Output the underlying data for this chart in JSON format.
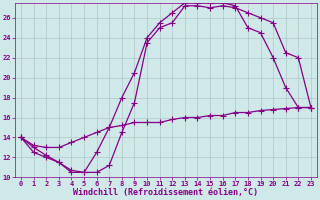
{
  "background_color": "#cfe8e8",
  "grid_color": "#b0c8c8",
  "line_color": "#880088",
  "marker": "+",
  "markersize": 4,
  "linewidth": 0.9,
  "xlabel": "Windchill (Refroidissement éolien,°C)",
  "xlabel_fontsize": 6,
  "xlabel_color": "#880088",
  "tick_color": "#880088",
  "tick_fontsize": 5,
  "xlim": [
    -0.5,
    23.5
  ],
  "ylim": [
    10,
    27.5
  ],
  "xticks": [
    0,
    1,
    2,
    3,
    4,
    5,
    6,
    7,
    8,
    9,
    10,
    11,
    12,
    13,
    14,
    15,
    16,
    17,
    18,
    19,
    20,
    21,
    22,
    23
  ],
  "yticks": [
    10,
    12,
    14,
    16,
    18,
    20,
    22,
    24,
    26
  ],
  "curve1_x": [
    0,
    1,
    2,
    3,
    4,
    5,
    6,
    7,
    8,
    9,
    10,
    11,
    12,
    13,
    14,
    15,
    16,
    17,
    18,
    19,
    20,
    21,
    22,
    23
  ],
  "curve1_y": [
    14,
    13,
    12.2,
    11.5,
    10.7,
    10.5,
    10.5,
    11.2,
    14.5,
    17.5,
    23.5,
    25.0,
    25.5,
    27.2,
    27.2,
    27.0,
    27.2,
    27.0,
    26.5,
    26.0,
    25.5,
    22.5,
    22.0,
    17.0
  ],
  "curve2_x": [
    0,
    1,
    2,
    3,
    4,
    5,
    6,
    7,
    8,
    9,
    10,
    11,
    12,
    13,
    14,
    15,
    16,
    17,
    18,
    19,
    20,
    21,
    22,
    23
  ],
  "curve2_y": [
    14,
    12.5,
    12.0,
    11.5,
    10.5,
    10.5,
    12.5,
    15.0,
    18.0,
    20.5,
    24.0,
    25.5,
    26.5,
    27.5,
    27.5,
    27.5,
    27.5,
    27.2,
    25.0,
    24.5,
    22.0,
    19.0,
    17.0,
    17.0
  ],
  "curve3_x": [
    0,
    1,
    2,
    3,
    4,
    5,
    6,
    7,
    8,
    9,
    10,
    11,
    12,
    13,
    14,
    15,
    16,
    17,
    18,
    19,
    20,
    21,
    22,
    23
  ],
  "curve3_y": [
    14,
    13.2,
    13.0,
    13.0,
    13.5,
    14.0,
    14.5,
    15.0,
    15.2,
    15.5,
    15.5,
    15.5,
    15.8,
    16.0,
    16.0,
    16.2,
    16.2,
    16.5,
    16.5,
    16.7,
    16.8,
    16.9,
    17.0,
    17.0
  ]
}
